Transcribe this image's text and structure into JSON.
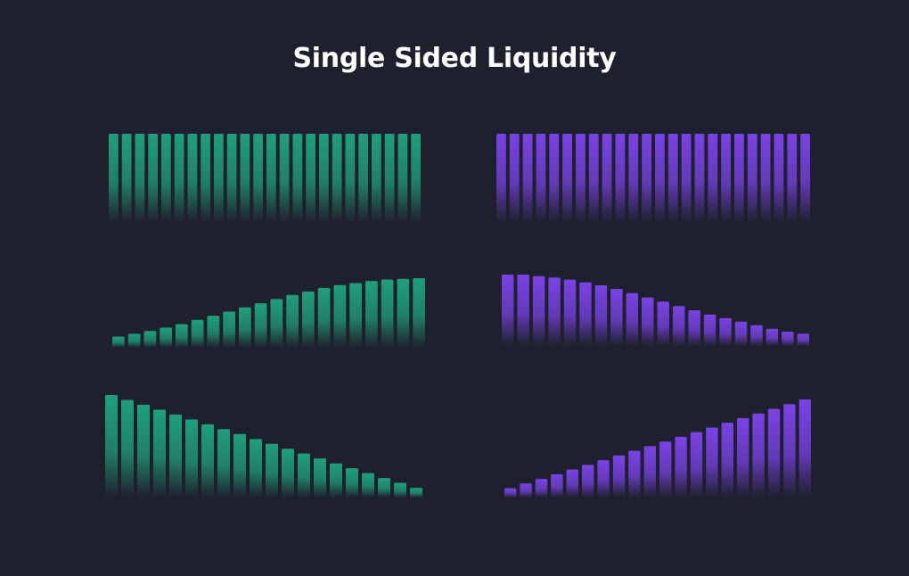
{
  "title": "Single Sided Liquidity",
  "colors": {
    "background": "#1f202d",
    "green": "#1f9f7c",
    "purple": "#7a42e6"
  },
  "chart_data": [
    {
      "type": "bar",
      "description": "uniform distribution",
      "color": "green",
      "values": [
        1,
        1,
        1,
        1,
        1,
        1,
        1,
        1,
        1,
        1,
        1,
        1,
        1,
        1,
        1,
        1,
        1,
        1,
        1,
        1,
        1,
        1,
        1,
        1
      ],
      "ylim": [
        0,
        1
      ]
    },
    {
      "type": "bar",
      "description": "uniform distribution",
      "color": "purple",
      "values": [
        1,
        1,
        1,
        1,
        1,
        1,
        1,
        1,
        1,
        1,
        1,
        1,
        1,
        1,
        1,
        1,
        1,
        1,
        1,
        1,
        1,
        1,
        1,
        1
      ],
      "ylim": [
        0,
        1
      ]
    },
    {
      "type": "bar",
      "description": "increasing curve",
      "color": "green",
      "values": [
        0.16,
        0.2,
        0.24,
        0.29,
        0.34,
        0.4,
        0.46,
        0.52,
        0.58,
        0.64,
        0.7,
        0.76,
        0.81,
        0.86,
        0.9,
        0.93,
        0.96,
        0.98,
        0.99,
        1
      ],
      "ylim": [
        0,
        1
      ]
    },
    {
      "type": "bar",
      "description": "decreasing curve",
      "color": "purple",
      "values": [
        1,
        1,
        0.98,
        0.96,
        0.93,
        0.89,
        0.85,
        0.8,
        0.74,
        0.68,
        0.62,
        0.56,
        0.5,
        0.44,
        0.39,
        0.34,
        0.29,
        0.24,
        0.2,
        0.17
      ],
      "ylim": [
        0,
        1
      ]
    },
    {
      "type": "bar",
      "description": "linear decreasing",
      "color": "green",
      "values": [
        1,
        0.952,
        0.905,
        0.857,
        0.81,
        0.762,
        0.714,
        0.667,
        0.619,
        0.571,
        0.524,
        0.476,
        0.429,
        0.381,
        0.333,
        0.286,
        0.238,
        0.19,
        0.143,
        0.095
      ],
      "ylim": [
        0,
        1
      ]
    },
    {
      "type": "bar",
      "description": "linear increasing",
      "color": "purple",
      "values": [
        0.095,
        0.143,
        0.19,
        0.238,
        0.286,
        0.333,
        0.381,
        0.429,
        0.476,
        0.524,
        0.571,
        0.619,
        0.667,
        0.714,
        0.762,
        0.81,
        0.857,
        0.905,
        0.952,
        1
      ],
      "ylim": [
        0,
        1
      ]
    }
  ]
}
